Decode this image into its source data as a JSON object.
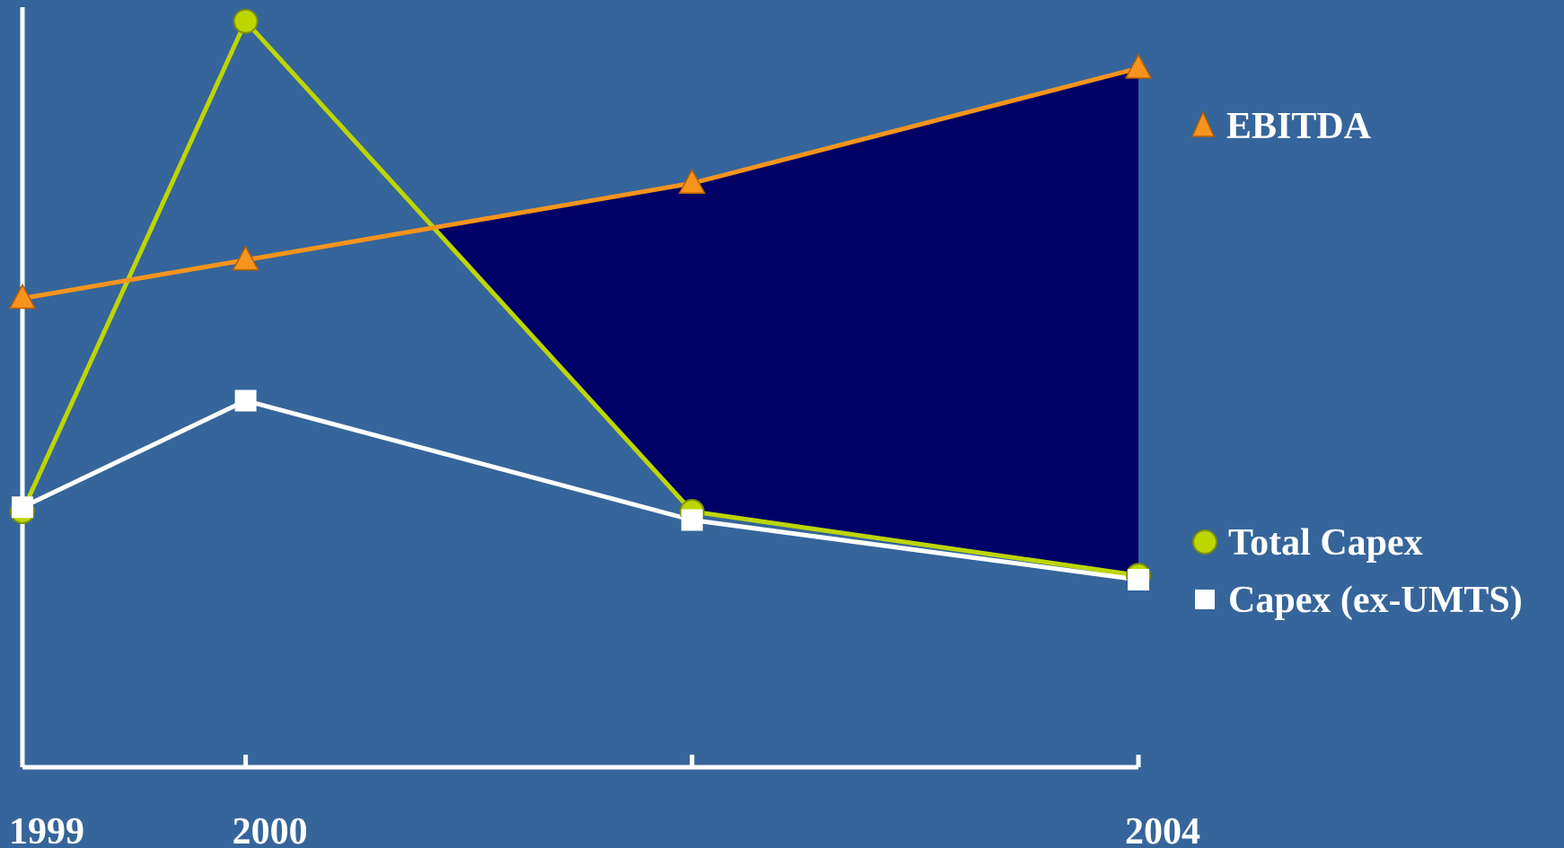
{
  "chart_data": {
    "type": "line",
    "x": [
      1999,
      2000,
      2002,
      2004
    ],
    "x_tick_labels": [
      "1999",
      "2000",
      "",
      "2004"
    ],
    "series": [
      {
        "name": "EBITDA",
        "marker": "triangle",
        "color": "#F7941D",
        "values": [
          55,
          59.5,
          68.5,
          82
        ]
      },
      {
        "name": "Total Capex",
        "marker": "circle",
        "color": "#BDD600",
        "values": [
          30,
          87.5,
          30,
          22.5
        ]
      },
      {
        "name": "Capex (ex-UMTS)",
        "marker": "square",
        "color": "#FFFFFF",
        "values": [
          30.5,
          43,
          29,
          22
        ]
      }
    ],
    "shaded_region": {
      "description_color": "#000066",
      "upper_series": "EBITDA",
      "lower_series": "Total Capex"
    },
    "ylim": [
      0,
      90
    ],
    "grid": false,
    "legend_placement": "right",
    "background_color": "#35659A",
    "axis_color": "#FFFFFF"
  }
}
